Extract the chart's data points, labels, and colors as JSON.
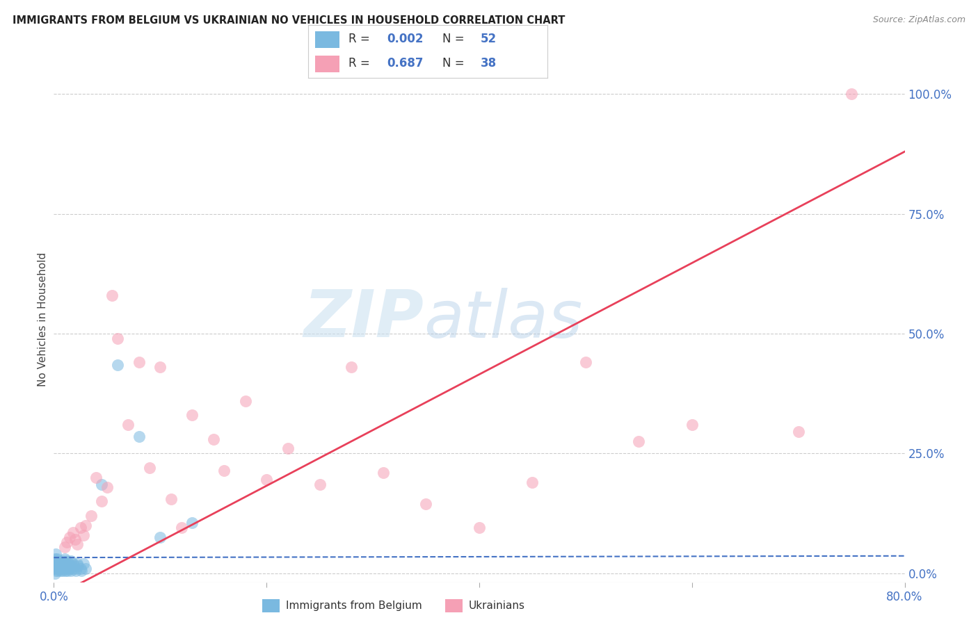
{
  "title": "IMMIGRANTS FROM BELGIUM VS UKRAINIAN NO VEHICLES IN HOUSEHOLD CORRELATION CHART",
  "source": "Source: ZipAtlas.com",
  "ylabel": "No Vehicles in Household",
  "xlim": [
    0.0,
    0.8
  ],
  "ylim": [
    -0.02,
    1.08
  ],
  "yticks": [
    0.0,
    0.25,
    0.5,
    0.75,
    1.0
  ],
  "ytick_labels": [
    "0.0%",
    "25.0%",
    "50.0%",
    "75.0%",
    "100.0%"
  ],
  "color_belgium": "#7ab9e0",
  "color_ukraine": "#f5a0b5",
  "trendline_belgium": "#4472c4",
  "trendline_ukraine": "#e8405a",
  "R_belgium": 0.002,
  "N_belgium": 52,
  "R_ukraine": 0.687,
  "N_ukraine": 38,
  "watermark_zip": "ZIP",
  "watermark_atlas": "atlas",
  "background_color": "#ffffff",
  "belgium_x": [
    0.001,
    0.001,
    0.001,
    0.001,
    0.002,
    0.002,
    0.002,
    0.002,
    0.003,
    0.003,
    0.003,
    0.004,
    0.004,
    0.005,
    0.005,
    0.006,
    0.006,
    0.007,
    0.007,
    0.008,
    0.008,
    0.009,
    0.009,
    0.01,
    0.01,
    0.011,
    0.011,
    0.012,
    0.012,
    0.013,
    0.013,
    0.014,
    0.015,
    0.015,
    0.016,
    0.016,
    0.017,
    0.018,
    0.019,
    0.02,
    0.021,
    0.022,
    0.023,
    0.025,
    0.026,
    0.028,
    0.03,
    0.045,
    0.06,
    0.08,
    0.1,
    0.13
  ],
  "belgium_y": [
    0.02,
    0.01,
    0.03,
    0.0,
    0.015,
    0.005,
    0.025,
    0.04,
    0.01,
    0.02,
    0.03,
    0.005,
    0.015,
    0.02,
    0.01,
    0.015,
    0.005,
    0.02,
    0.01,
    0.025,
    0.005,
    0.015,
    0.02,
    0.01,
    0.03,
    0.005,
    0.02,
    0.01,
    0.025,
    0.015,
    0.005,
    0.02,
    0.01,
    0.015,
    0.005,
    0.025,
    0.01,
    0.02,
    0.015,
    0.01,
    0.005,
    0.02,
    0.015,
    0.01,
    0.005,
    0.02,
    0.01,
    0.185,
    0.435,
    0.285,
    0.075,
    0.105
  ],
  "ukraine_x": [
    0.01,
    0.012,
    0.015,
    0.018,
    0.02,
    0.022,
    0.025,
    0.028,
    0.03,
    0.035,
    0.04,
    0.045,
    0.05,
    0.055,
    0.06,
    0.07,
    0.08,
    0.09,
    0.1,
    0.11,
    0.12,
    0.13,
    0.15,
    0.16,
    0.18,
    0.2,
    0.22,
    0.25,
    0.28,
    0.31,
    0.35,
    0.4,
    0.45,
    0.5,
    0.55,
    0.6,
    0.7,
    0.75
  ],
  "ukraine_y": [
    0.055,
    0.065,
    0.075,
    0.085,
    0.07,
    0.06,
    0.095,
    0.08,
    0.1,
    0.12,
    0.2,
    0.15,
    0.18,
    0.58,
    0.49,
    0.31,
    0.44,
    0.22,
    0.43,
    0.155,
    0.095,
    0.33,
    0.28,
    0.215,
    0.36,
    0.195,
    0.26,
    0.185,
    0.43,
    0.21,
    0.145,
    0.095,
    0.19,
    0.44,
    0.275,
    0.31,
    0.295,
    1.0
  ]
}
